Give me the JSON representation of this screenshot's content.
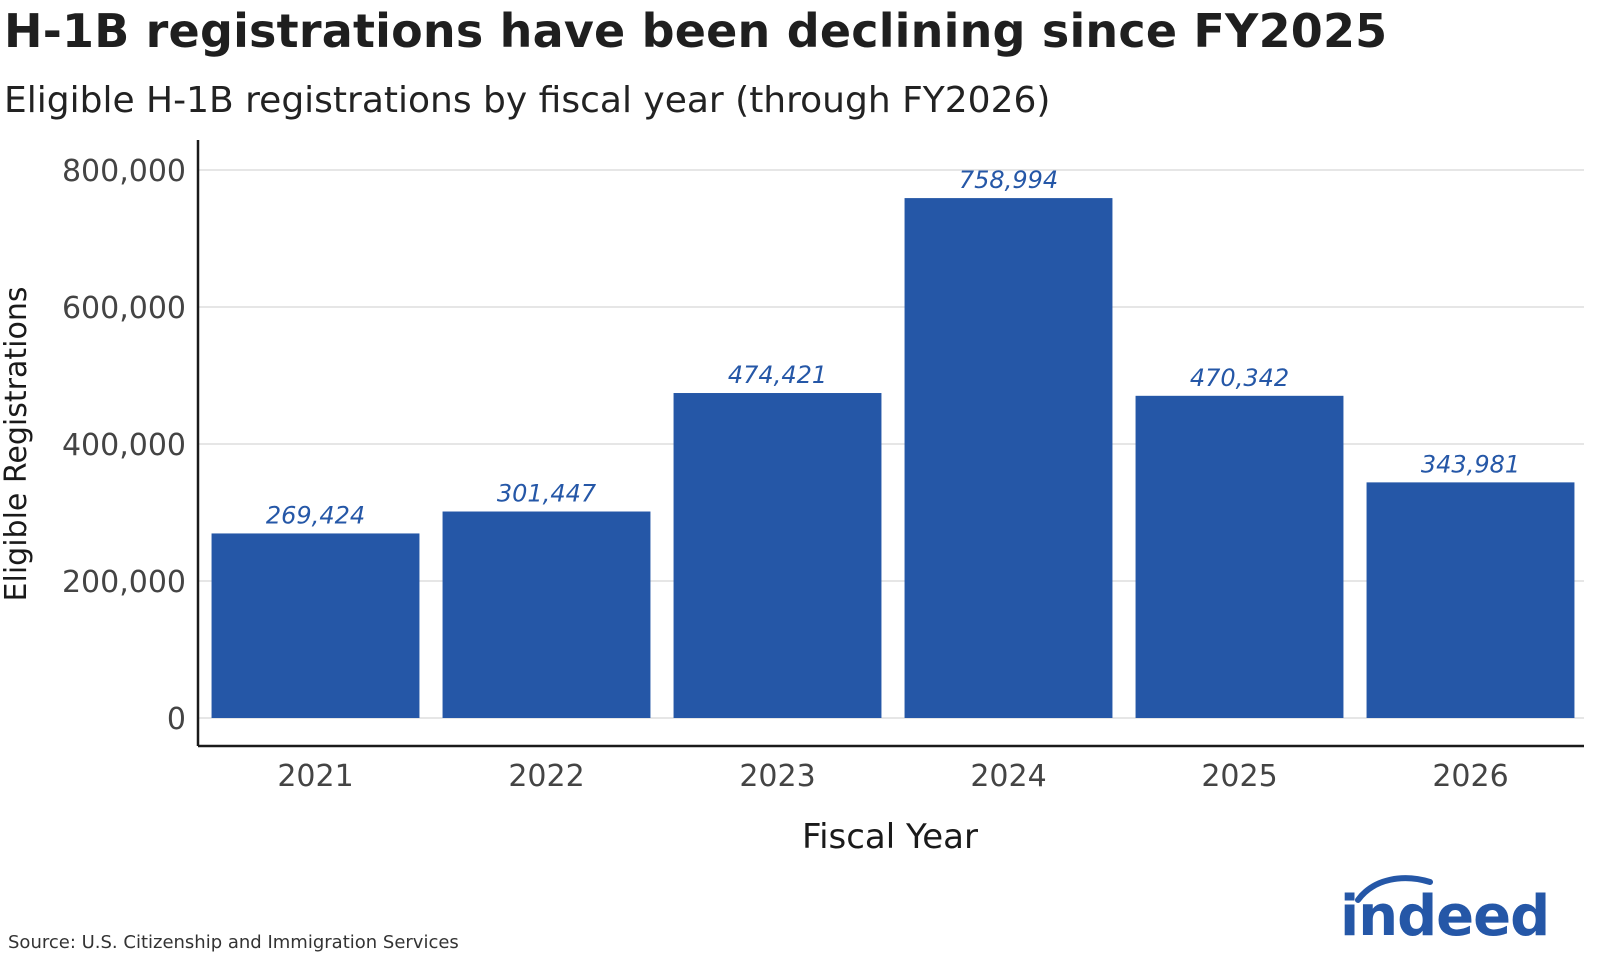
{
  "title": "H-1B registrations have been declining since FY2025",
  "subtitle": "Eligible H-1B registrations by fiscal year (through FY2026)",
  "source": "Source: U.S. Citizenship and Immigration Services",
  "logo_text": "indeed",
  "colors": {
    "bar": "#2557a7",
    "label": "#2557a7",
    "grid": "#dddddd",
    "axis": "#1a1a1a"
  },
  "chart_data": {
    "type": "bar",
    "categories": [
      "2021",
      "2022",
      "2023",
      "2024",
      "2025",
      "2026"
    ],
    "values": [
      269424,
      301447,
      474421,
      758994,
      470342,
      343981
    ],
    "data_labels": [
      "269,424",
      "301,447",
      "474,421",
      "758,994",
      "470,342",
      "343,981"
    ],
    "xlabel": "Fiscal Year",
    "ylabel": "Eligible Registrations",
    "ylim": [
      0,
      800000
    ],
    "yticks": [
      0,
      200000,
      400000,
      600000,
      800000
    ],
    "ytick_labels": [
      "0",
      "200,000",
      "400,000",
      "600,000",
      "800,000"
    ],
    "grid": true,
    "legend": "none"
  }
}
